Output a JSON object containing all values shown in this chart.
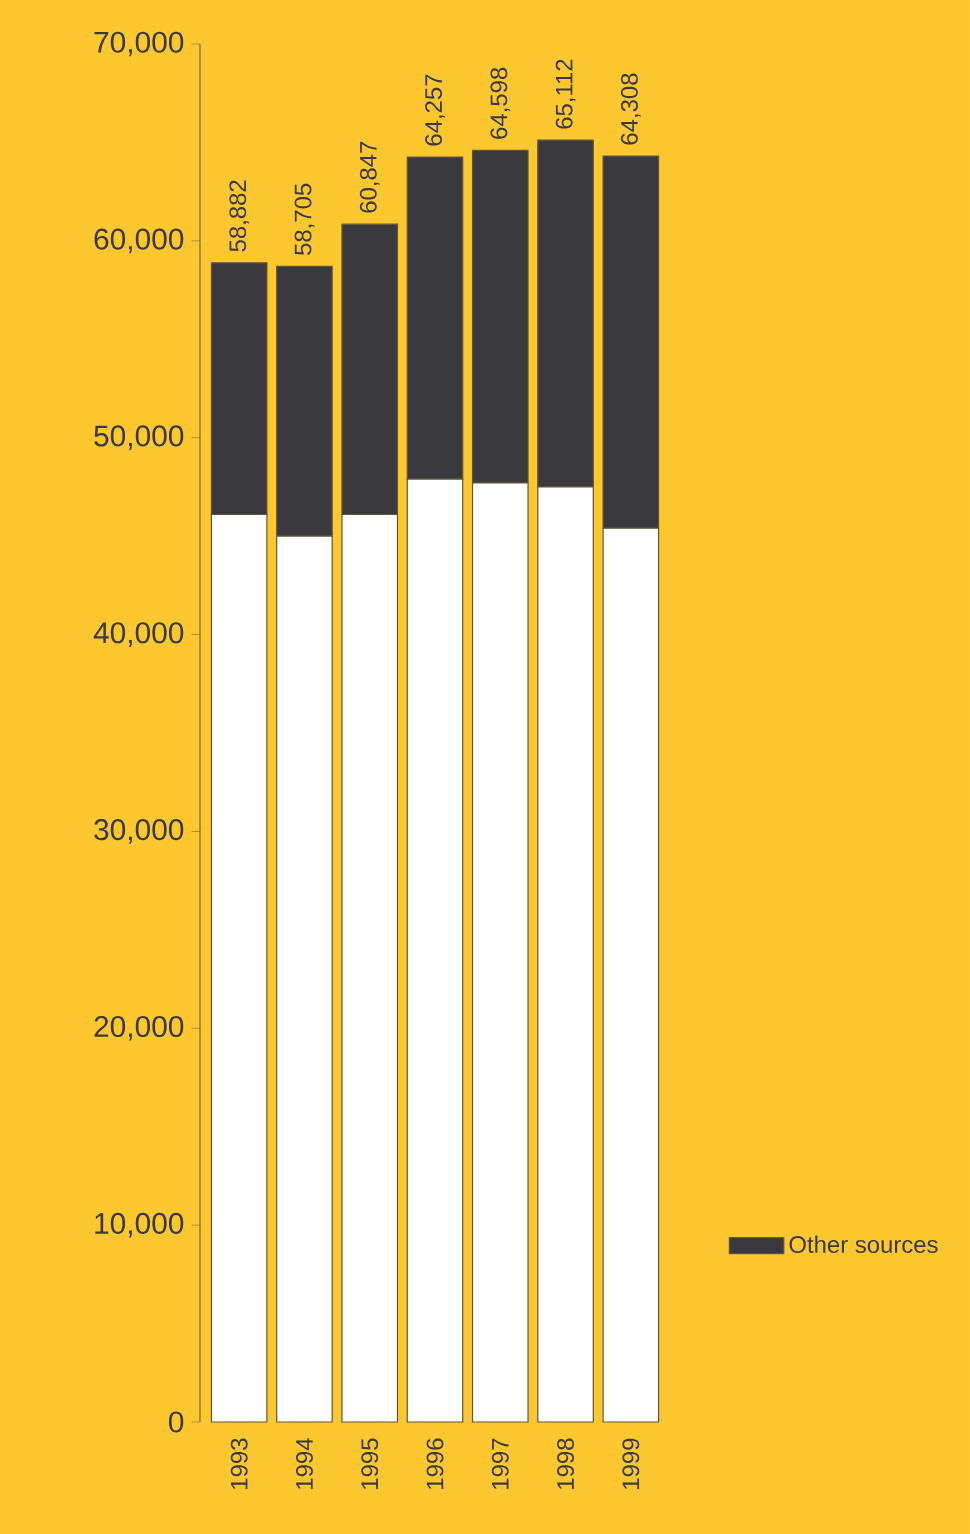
{
  "chart_data": {
    "type": "bar",
    "stacked": true,
    "categories": [
      "1993",
      "1994",
      "1995",
      "1996",
      "1997",
      "1998",
      "1999"
    ],
    "series": [
      {
        "color": "#ffffff",
        "values": [
          46100,
          45000,
          46100,
          47900,
          47700,
          47500,
          45400
        ]
      },
      {
        "name": "Other sources",
        "color": "#3a3a3e",
        "values": [
          12782,
          13705,
          14747,
          16357,
          16898,
          17612,
          18908
        ]
      }
    ],
    "totals": [
      "58,882",
      "58,705",
      "60,847",
      "64,257",
      "64,598",
      "65,112",
      "64,308"
    ],
    "ylim": [
      0,
      70000
    ],
    "yticks": [
      0,
      {
        "value": 10000,
        "label": "10,000"
      },
      {
        "value": 20000,
        "label": "20,000"
      },
      {
        "value": 30000,
        "label": "30,000"
      },
      {
        "value": 40000,
        "label": "40,000"
      },
      {
        "value": 50000,
        "label": "50,000"
      },
      {
        "value": 60000,
        "label": "60,000"
      },
      {
        "value": 70000,
        "label": "70,000"
      }
    ],
    "legend": "bottom right"
  }
}
